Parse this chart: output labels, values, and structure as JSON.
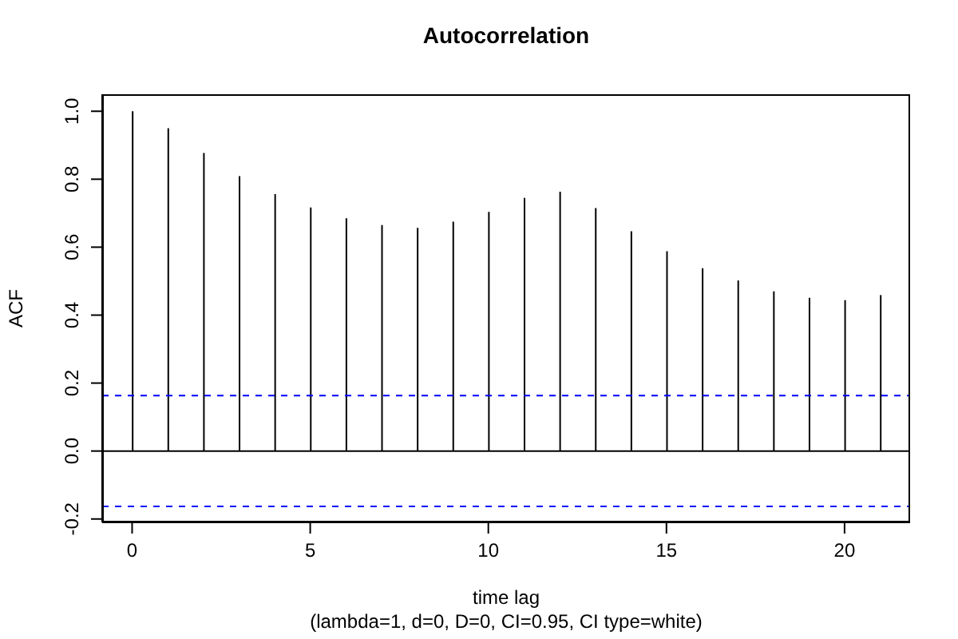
{
  "chart_data": {
    "type": "bar",
    "title": "Autocorrelation",
    "subtitle": "(lambda=1, d=0, D=0, CI=0.95, CI type=white)",
    "xlabel": "time lag",
    "ylabel": "ACF",
    "x": [
      0,
      1,
      2,
      3,
      4,
      5,
      6,
      7,
      8,
      9,
      10,
      11,
      12,
      13,
      14,
      15,
      16,
      17,
      18,
      19,
      20,
      21
    ],
    "values": [
      1.0,
      0.95,
      0.877,
      0.809,
      0.756,
      0.717,
      0.685,
      0.665,
      0.657,
      0.675,
      0.704,
      0.745,
      0.763,
      0.715,
      0.647,
      0.588,
      0.538,
      0.502,
      0.47,
      0.451,
      0.444,
      0.459
    ],
    "color": "#000000",
    "xlim": [
      -0.84,
      21.84
    ],
    "xticks": [
      0,
      5,
      10,
      15,
      20
    ],
    "ylim": [
      -0.21,
      1.05
    ],
    "yticks": [
      {
        "value": -0.2,
        "label": "-0.2"
      },
      {
        "value": 0,
        "label": "0.0"
      },
      0.2,
      0.4,
      0.6,
      0.8,
      {
        "value": 1,
        "label": "1.0"
      }
    ],
    "ref_lines": [
      {
        "axis": "y",
        "value": 0,
        "color": "#000000",
        "line_style": "solid"
      },
      {
        "axis": "y",
        "value": 0.163,
        "color": "#0000ff",
        "line_style": "dashed"
      },
      {
        "axis": "y",
        "value": -0.163,
        "color": "#0000ff",
        "line_style": "dashed"
      }
    ]
  }
}
